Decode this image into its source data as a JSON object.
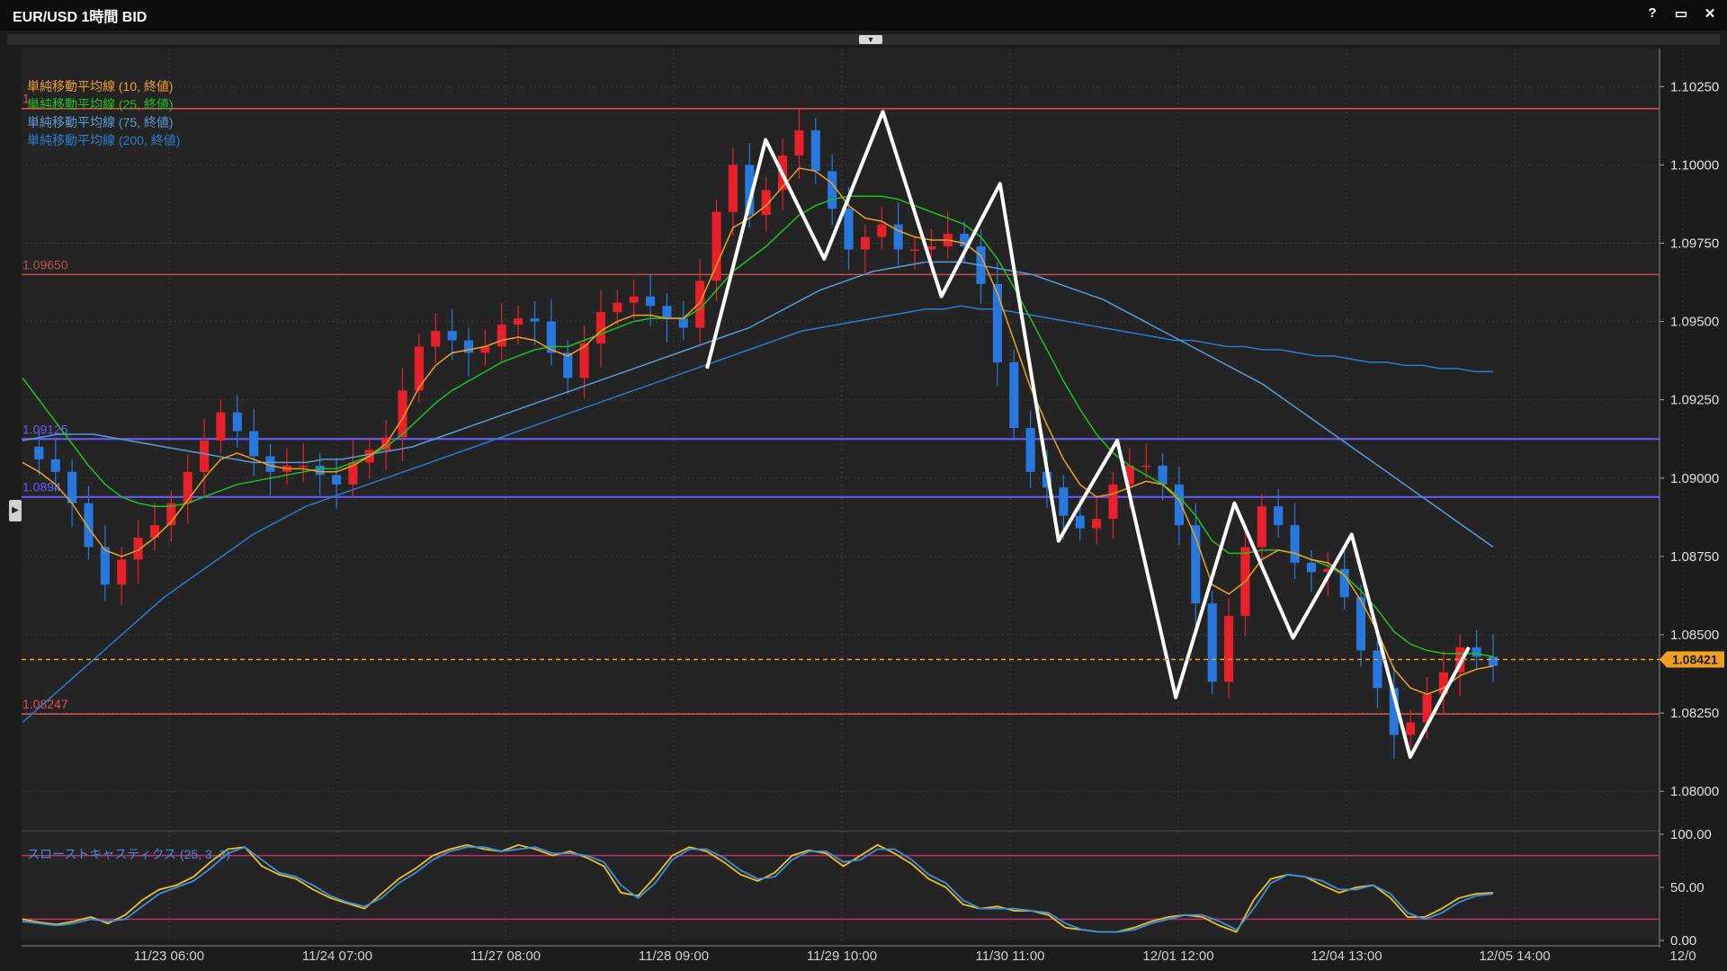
{
  "window": {
    "title": "EUR/USD 1時間 BID",
    "controls": [
      "?",
      "▭",
      "✕"
    ]
  },
  "legend": [
    {
      "label": "単純移動平均線 (10, 終値)",
      "color": "#f0a020"
    },
    {
      "label": "単純移動平均線 (25, 終値)",
      "color": "#20c020"
    },
    {
      "label": "単純移動平均線 (75, 終値)",
      "color": "#5b9bd5"
    },
    {
      "label": "単純移動平均線 (200, 終値)",
      "color": "#2a7dd0"
    }
  ],
  "chart_data": [
    {
      "type": "candlestick",
      "y_ticks": [
        "1.10250",
        "1.10000",
        "1.09750",
        "1.09500",
        "1.09250",
        "1.09000",
        "1.08750",
        "1.08500",
        "1.08250",
        "1.08000"
      ],
      "ylim": [
        1.0788,
        1.1036
      ],
      "x_ticks": [
        "11/23 06:00",
        "11/24 07:00",
        "11/27 08:00",
        "11/28 09:00",
        "11/29 10:00",
        "11/30 11:00",
        "12/01 12:00",
        "12/04 13:00",
        "12/05 14:00",
        "12/0"
      ],
      "current_price": {
        "value": 1.08421,
        "label": "1.08421",
        "color": "#f0a020"
      },
      "horizontal_lines": [
        {
          "value": 1.1018,
          "label": "1",
          "color": "#e05050"
        },
        {
          "value": 1.0965,
          "label": "1.09650",
          "color": "#c05050"
        },
        {
          "value": 1.09125,
          "label": "1.09125",
          "color": "#6a5cff"
        },
        {
          "value": 1.0894,
          "label": "1.0894",
          "color": "#6a5cff"
        },
        {
          "value": 1.08247,
          "label": "1.08247",
          "color": "#e05050"
        }
      ],
      "zigzag": [
        1.0935,
        1.1008,
        1.097,
        1.1017,
        1.0958,
        1.0994,
        1.088,
        1.0912,
        1.083,
        1.0892,
        1.0849,
        1.0882,
        1.0811,
        1.0846
      ],
      "series": {
        "close": [
          1.091,
          1.0906,
          1.0902,
          1.0892,
          1.0878,
          1.0866,
          1.0874,
          1.0881,
          1.0885,
          1.0892,
          1.0902,
          1.0912,
          1.0921,
          1.0915,
          1.0907,
          1.0902,
          1.0904,
          1.0904,
          1.0901,
          1.0898,
          1.0905,
          1.0909,
          1.0913,
          1.0928,
          1.0942,
          1.0947,
          1.0944,
          1.094,
          1.0942,
          1.0949,
          1.0951,
          1.095,
          1.094,
          1.0932,
          1.0943,
          1.0953,
          1.0956,
          1.0958,
          1.0955,
          1.0951,
          1.0948,
          1.0963,
          1.0985,
          1.1,
          1.0984,
          1.0992,
          1.1003,
          1.1011,
          1.0998,
          1.0986,
          1.0973,
          1.0977,
          1.0981,
          1.0973,
          1.0973,
          1.0974,
          1.0978,
          1.0974,
          1.0962,
          1.0937,
          1.0916,
          1.0902,
          1.0897,
          1.0888,
          1.0884,
          1.0887,
          1.0898,
          1.0904,
          1.0904,
          1.0898,
          1.0885,
          1.086,
          1.0835,
          1.0856,
          1.0878,
          1.0891,
          1.0885,
          1.0873,
          1.087,
          1.0871,
          1.0862,
          1.0845,
          1.0833,
          1.0818,
          1.0822,
          1.0831,
          1.0838,
          1.0846,
          1.0843,
          1.084
        ],
        "sma10": [
          1.0905,
          1.0902,
          1.0898,
          1.0892,
          1.0884,
          1.0877,
          1.0875,
          1.0877,
          1.0881,
          1.0886,
          1.0893,
          1.09,
          1.0906,
          1.0908,
          1.0906,
          1.0904,
          1.0903,
          1.0903,
          1.0902,
          1.0902,
          1.0904,
          1.0907,
          1.0911,
          1.0919,
          1.0929,
          1.0936,
          1.094,
          1.0941,
          1.0942,
          1.0944,
          1.0945,
          1.0944,
          1.0941,
          1.0939,
          1.0942,
          1.0947,
          1.095,
          1.0952,
          1.0952,
          1.0951,
          1.0951,
          1.0956,
          1.0968,
          1.098,
          1.0983,
          1.0987,
          1.0993,
          1.0999,
          1.0998,
          1.0994,
          1.0987,
          1.0983,
          1.0982,
          1.0979,
          1.0977,
          1.0976,
          1.0976,
          1.0975,
          1.0971,
          1.0959,
          1.0944,
          1.0929,
          1.0917,
          1.0906,
          1.0898,
          1.0894,
          1.0895,
          1.0897,
          1.0899,
          1.0898,
          1.0893,
          1.0881,
          1.0866,
          1.0863,
          1.0867,
          1.0874,
          1.0877,
          1.0876,
          1.0874,
          1.0873,
          1.0869,
          1.0861,
          1.0851,
          1.0839,
          1.0833,
          1.0831,
          1.0833,
          1.0837,
          1.0839,
          1.084
        ],
        "sma25": [
          1.0932,
          1.0925,
          1.0918,
          1.0911,
          1.0904,
          1.0898,
          1.0894,
          1.0892,
          1.0891,
          1.0891,
          1.0892,
          1.0894,
          1.0896,
          1.0898,
          1.0899,
          1.09,
          1.0901,
          1.0902,
          1.0903,
          1.0903,
          1.0905,
          1.0907,
          1.091,
          1.0914,
          1.0919,
          1.0924,
          1.0928,
          1.0931,
          1.0934,
          1.0937,
          1.0939,
          1.0941,
          1.0942,
          1.0942,
          1.0944,
          1.0946,
          1.0948,
          1.095,
          1.0951,
          1.0951,
          1.0951,
          1.0954,
          1.096,
          1.0966,
          1.097,
          1.0974,
          1.0979,
          1.0984,
          1.0987,
          1.0989,
          1.099,
          1.099,
          1.099,
          1.0989,
          1.0987,
          1.0985,
          1.0983,
          1.0981,
          1.0977,
          1.097,
          1.0961,
          1.0951,
          1.0941,
          1.0931,
          1.0922,
          1.0914,
          1.0908,
          1.0904,
          1.0901,
          1.0898,
          1.0894,
          1.0888,
          1.088,
          1.0876,
          1.0876,
          1.0877,
          1.0877,
          1.0876,
          1.0874,
          1.0872,
          1.0869,
          1.0864,
          1.0858,
          1.0851,
          1.0847,
          1.0845,
          1.0844,
          1.0844,
          1.0844,
          1.0843
        ],
        "sma75": [
          1.0912,
          1.0913,
          1.0914,
          1.0914,
          1.0914,
          1.0913,
          1.0912,
          1.0911,
          1.091,
          1.0909,
          1.0908,
          1.0907,
          1.0906,
          1.0905,
          1.0905,
          1.0905,
          1.0905,
          1.0906,
          1.0906,
          1.0907,
          1.0908,
          1.0909,
          1.091,
          1.0912,
          1.0914,
          1.0916,
          1.0918,
          1.092,
          1.0922,
          1.0924,
          1.0926,
          1.0928,
          1.093,
          1.0932,
          1.0934,
          1.0936,
          1.0938,
          1.094,
          1.0942,
          1.0944,
          1.0946,
          1.0948,
          1.0951,
          1.0954,
          1.0957,
          1.096,
          1.0962,
          1.0964,
          1.0966,
          1.0967,
          1.0968,
          1.0969,
          1.0969,
          1.0969,
          1.0968,
          1.0967,
          1.0966,
          1.0965,
          1.0963,
          1.0961,
          1.0959,
          1.0957,
          1.0954,
          1.0951,
          1.0948,
          1.0945,
          1.0942,
          1.0939,
          1.0936,
          1.0933,
          1.093,
          1.0926,
          1.0922,
          1.0918,
          1.0914,
          1.091,
          1.0906,
          1.0902,
          1.0898,
          1.0894,
          1.089,
          1.0886,
          1.0882,
          1.0878
        ],
        "sma200": [
          1.0822,
          1.0827,
          1.0832,
          1.0837,
          1.0842,
          1.0847,
          1.0852,
          1.0857,
          1.0862,
          1.0866,
          1.087,
          1.0874,
          1.0878,
          1.0882,
          1.0885,
          1.0888,
          1.0891,
          1.0893,
          1.0895,
          1.0897,
          1.0899,
          1.0901,
          1.0903,
          1.0905,
          1.0907,
          1.0909,
          1.0911,
          1.0913,
          1.0915,
          1.0917,
          1.0919,
          1.0921,
          1.0923,
          1.0925,
          1.0927,
          1.0929,
          1.0931,
          1.0933,
          1.0935,
          1.0937,
          1.0939,
          1.0941,
          1.0943,
          1.0945,
          1.0947,
          1.0948,
          1.0949,
          1.095,
          1.0951,
          1.0952,
          1.0953,
          1.0954,
          1.0954,
          1.0955,
          1.0954,
          1.0954,
          1.0953,
          1.0952,
          1.0951,
          1.095,
          1.0949,
          1.0948,
          1.0947,
          1.0946,
          1.0945,
          1.0944,
          1.0944,
          1.0943,
          1.0942,
          1.0942,
          1.0941,
          1.0941,
          1.094,
          1.0939,
          1.0939,
          1.0938,
          1.0937,
          1.0937,
          1.0936,
          1.0936,
          1.0935,
          1.0935,
          1.0934,
          1.0934
        ]
      },
      "series_colors": {
        "sma10": "#f0a020",
        "sma25": "#20c020",
        "sma75": "#5b9bd5",
        "sma200": "#2a7dd0",
        "up": "#e8202a",
        "down": "#2878e0",
        "zigzag": "#ffffff"
      }
    },
    {
      "type": "line",
      "title": "スローストキャスティクス (25, 3, 3)",
      "y_ticks": [
        "100.00",
        "50.00",
        "0.00"
      ],
      "ylim": [
        0,
        100
      ],
      "levels": [
        80,
        20
      ],
      "series": [
        {
          "color": "#f0c020",
          "values": [
            20,
            17,
            15,
            18,
            22,
            16,
            24,
            38,
            48,
            52,
            60,
            74,
            86,
            88,
            70,
            62,
            58,
            48,
            40,
            35,
            30,
            44,
            58,
            68,
            80,
            86,
            90,
            86,
            84,
            90,
            86,
            80,
            84,
            78,
            70,
            45,
            42,
            60,
            80,
            88,
            84,
            74,
            62,
            56,
            64,
            80,
            85,
            82,
            70,
            80,
            90,
            82,
            72,
            58,
            50,
            34,
            30,
            32,
            28,
            28,
            24,
            12,
            10,
            8,
            8,
            12,
            18,
            22,
            24,
            22,
            14,
            8,
            38,
            58,
            62,
            60,
            52,
            45,
            50,
            52,
            40,
            22,
            22,
            30,
            40,
            44,
            45
          ]
        },
        {
          "color": "#3a8fe0",
          "values": [
            18,
            16,
            14,
            16,
            20,
            18,
            20,
            32,
            44,
            50,
            56,
            68,
            82,
            88,
            76,
            64,
            60,
            52,
            42,
            36,
            32,
            40,
            54,
            64,
            76,
            84,
            88,
            88,
            84,
            86,
            88,
            82,
            82,
            80,
            74,
            52,
            40,
            54,
            76,
            86,
            86,
            78,
            66,
            58,
            60,
            76,
            84,
            84,
            74,
            76,
            86,
            86,
            76,
            62,
            54,
            38,
            30,
            30,
            30,
            28,
            26,
            16,
            10,
            8,
            8,
            10,
            16,
            20,
            24,
            24,
            18,
            10,
            30,
            54,
            62,
            60,
            56,
            48,
            48,
            52,
            44,
            26,
            20,
            26,
            36,
            42,
            44
          ]
        }
      ]
    }
  ]
}
